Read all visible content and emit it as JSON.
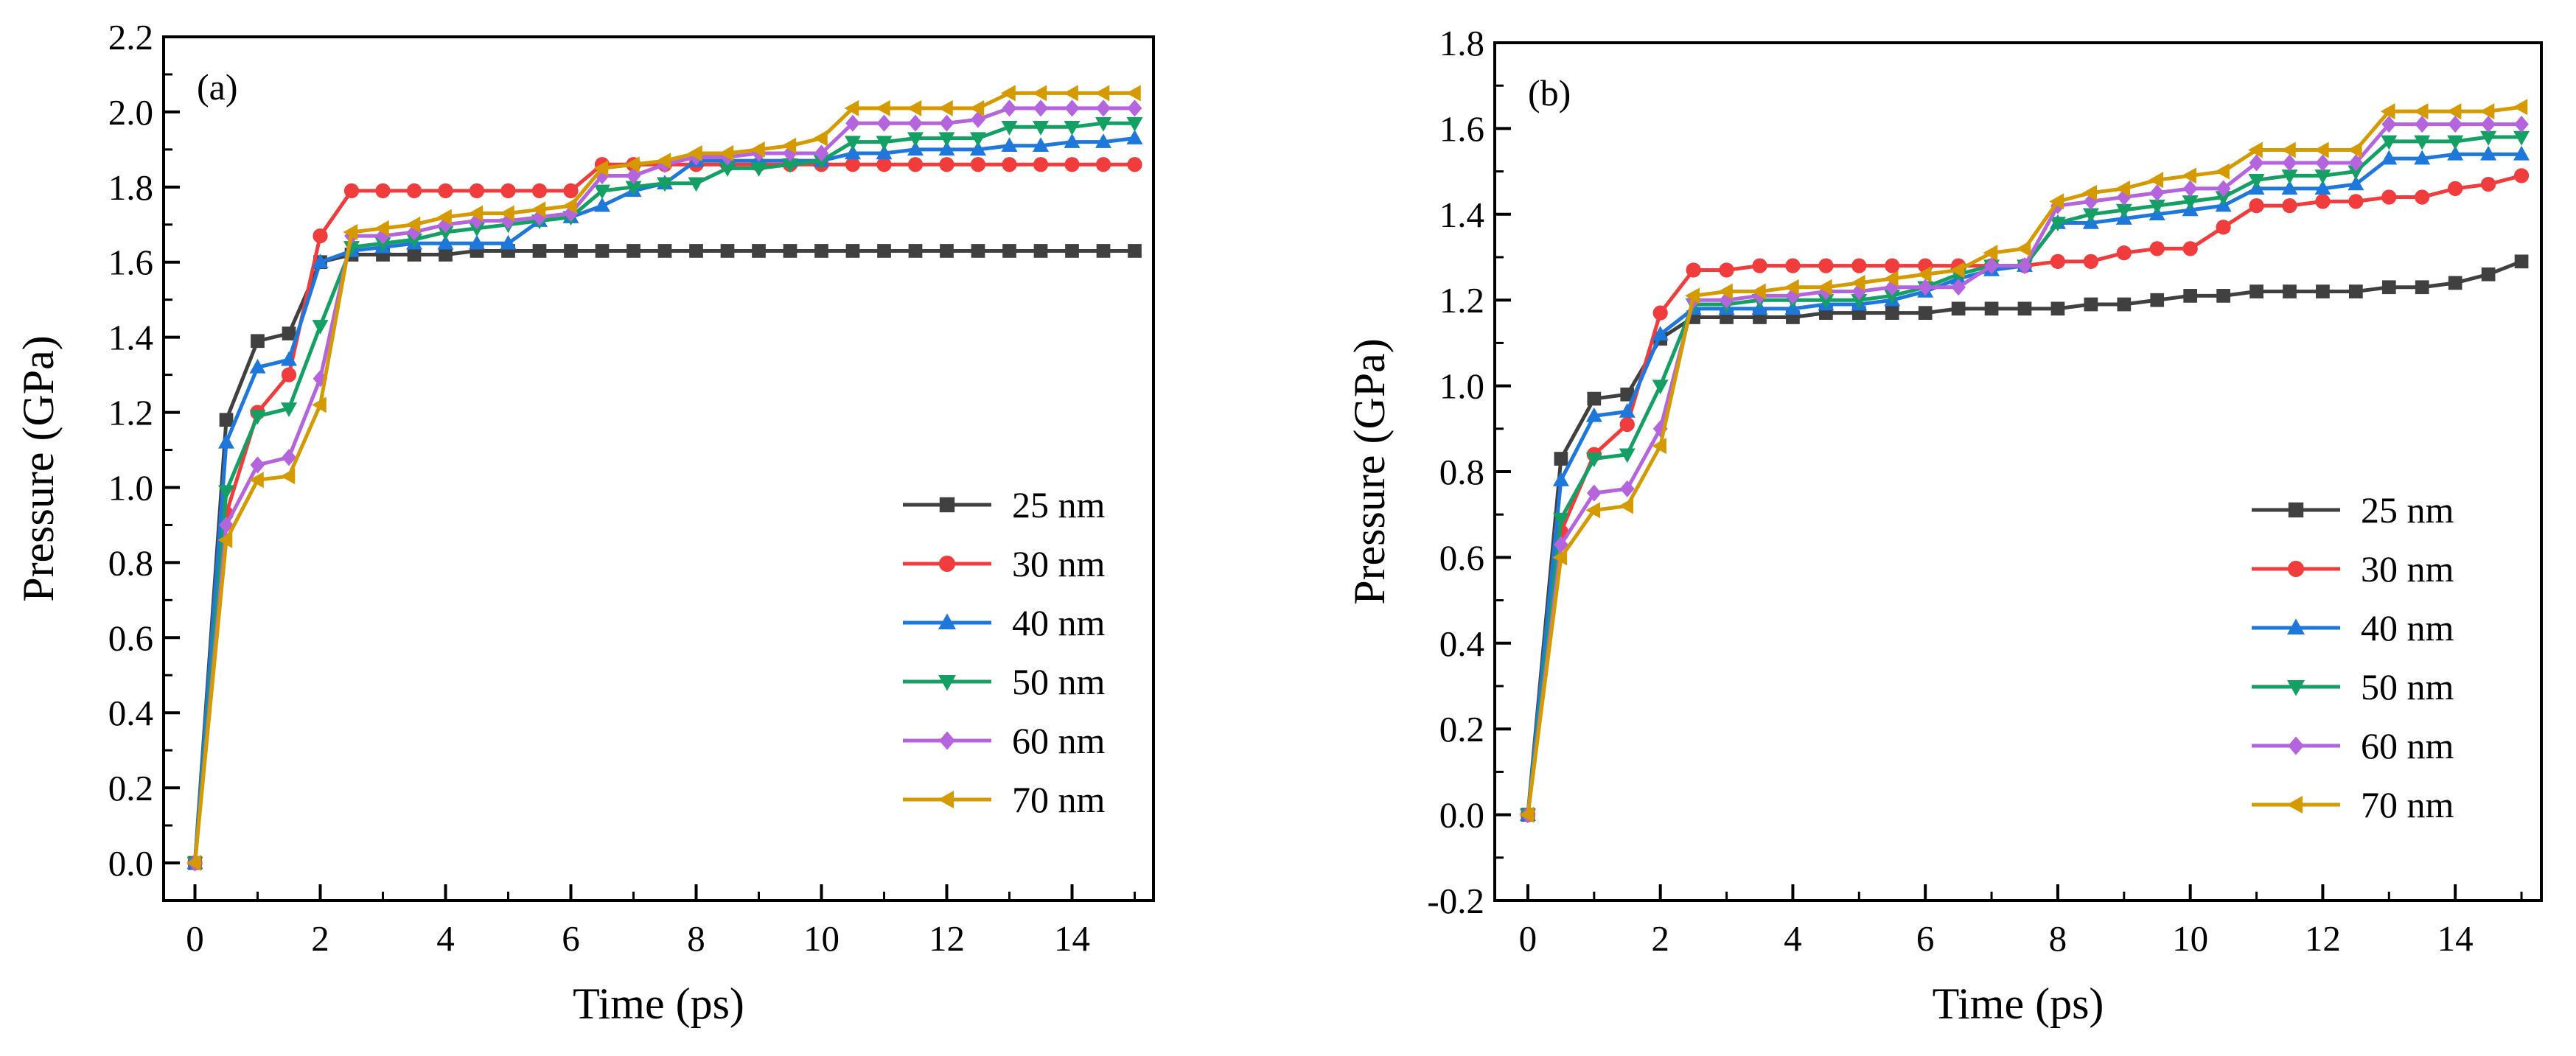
{
  "chart_data": [
    {
      "type": "line",
      "panel_label": "(a)",
      "xlabel": "Time (ps)",
      "ylabel": "Pressure (GPa)",
      "xlim": [
        -0.5,
        15.3
      ],
      "ylim": [
        -0.1,
        2.2
      ],
      "xticks": [
        0,
        2,
        4,
        6,
        8,
        10,
        12,
        14
      ],
      "xtick_labels": [
        "0",
        "2",
        "4",
        "6",
        "8",
        "10",
        "12",
        "14"
      ],
      "yticks": [
        0.0,
        0.2,
        0.4,
        0.6,
        0.8,
        1.0,
        1.2,
        1.4,
        1.6,
        1.8,
        2.0,
        2.2
      ],
      "ytick_labels": [
        "0.0",
        "0.2",
        "0.4",
        "0.6",
        "0.8",
        "1.0",
        "1.2",
        "1.4",
        "1.6",
        "1.8",
        "2.0",
        "2.2"
      ],
      "legend_position": "bottom-right",
      "x": [
        0,
        0.5,
        1,
        1.5,
        2,
        2.5,
        3,
        3.5,
        4,
        4.5,
        5,
        5.5,
        6,
        6.5,
        7,
        7.5,
        8,
        8.5,
        9,
        9.5,
        10,
        10.5,
        11,
        11.5,
        12,
        12.5,
        13,
        13.5,
        14,
        14.5,
        15
      ],
      "series": [
        {
          "name": "25 nm",
          "marker": "square",
          "color": "#404040",
          "values": [
            0,
            1.18,
            1.39,
            1.41,
            1.6,
            1.62,
            1.62,
            1.62,
            1.62,
            1.63,
            1.63,
            1.63,
            1.63,
            1.63,
            1.63,
            1.63,
            1.63,
            1.63,
            1.63,
            1.63,
            1.63,
            1.63,
            1.63,
            1.63,
            1.63,
            1.63,
            1.63,
            1.63,
            1.63,
            1.63,
            1.63
          ]
        },
        {
          "name": "30 nm",
          "marker": "circle",
          "color": "#f03c3c",
          "values": [
            0,
            0.93,
            1.2,
            1.3,
            1.67,
            1.79,
            1.79,
            1.79,
            1.79,
            1.79,
            1.79,
            1.79,
            1.79,
            1.86,
            1.86,
            1.86,
            1.86,
            1.86,
            1.86,
            1.86,
            1.86,
            1.86,
            1.86,
            1.86,
            1.86,
            1.86,
            1.86,
            1.86,
            1.86,
            1.86,
            1.86
          ]
        },
        {
          "name": "40 nm",
          "marker": "triangle-up",
          "color": "#1e78dc",
          "values": [
            0,
            1.12,
            1.32,
            1.34,
            1.6,
            1.63,
            1.64,
            1.65,
            1.65,
            1.65,
            1.65,
            1.71,
            1.72,
            1.75,
            1.79,
            1.81,
            1.87,
            1.87,
            1.87,
            1.87,
            1.87,
            1.89,
            1.89,
            1.9,
            1.9,
            1.9,
            1.91,
            1.91,
            1.92,
            1.92,
            1.93
          ]
        },
        {
          "name": "50 nm",
          "marker": "triangle-down",
          "color": "#14a064",
          "values": [
            0,
            0.99,
            1.19,
            1.21,
            1.43,
            1.64,
            1.65,
            1.66,
            1.68,
            1.69,
            1.7,
            1.71,
            1.72,
            1.79,
            1.8,
            1.81,
            1.81,
            1.85,
            1.85,
            1.86,
            1.87,
            1.92,
            1.92,
            1.93,
            1.93,
            1.93,
            1.96,
            1.96,
            1.96,
            1.97,
            1.97
          ]
        },
        {
          "name": "60 nm",
          "marker": "diamond",
          "color": "#b464dc",
          "values": [
            0,
            0.9,
            1.06,
            1.08,
            1.29,
            1.67,
            1.67,
            1.68,
            1.7,
            1.71,
            1.71,
            1.72,
            1.73,
            1.83,
            1.83,
            1.86,
            1.88,
            1.88,
            1.89,
            1.89,
            1.89,
            1.97,
            1.97,
            1.97,
            1.97,
            1.98,
            2.01,
            2.01,
            2.01,
            2.01,
            2.01
          ]
        },
        {
          "name": "70 nm",
          "marker": "triangle-left",
          "color": "#d49a00",
          "values": [
            0,
            0.86,
            1.02,
            1.03,
            1.22,
            1.68,
            1.69,
            1.7,
            1.72,
            1.73,
            1.73,
            1.74,
            1.75,
            1.85,
            1.86,
            1.87,
            1.89,
            1.89,
            1.9,
            1.91,
            1.93,
            2.01,
            2.01,
            2.01,
            2.01,
            2.01,
            2.05,
            2.05,
            2.05,
            2.05,
            2.05
          ]
        }
      ]
    },
    {
      "type": "line",
      "panel_label": "(b)",
      "xlabel": "Time (ps)",
      "ylabel": "Pressure (GPa)",
      "xlim": [
        -0.5,
        15.3
      ],
      "ylim": [
        -0.2,
        1.8
      ],
      "xticks": [
        0,
        2,
        4,
        6,
        8,
        10,
        12,
        14
      ],
      "xtick_labels": [
        "0",
        "2",
        "4",
        "6",
        "8",
        "10",
        "12",
        "14"
      ],
      "yticks": [
        -0.2,
        0.0,
        0.2,
        0.4,
        0.6,
        0.8,
        1.0,
        1.2,
        1.4,
        1.6,
        1.8
      ],
      "ytick_labels": [
        "-0.2",
        "0.0",
        "0.2",
        "0.4",
        "0.6",
        "0.8",
        "1.0",
        "1.2",
        "1.4",
        "1.6",
        "1.8"
      ],
      "legend_position": "bottom-right",
      "x": [
        0,
        0.5,
        1,
        1.5,
        2,
        2.5,
        3,
        3.5,
        4,
        4.5,
        5,
        5.5,
        6,
        6.5,
        7,
        7.5,
        8,
        8.5,
        9,
        9.5,
        10,
        10.5,
        11,
        11.5,
        12,
        12.5,
        13,
        13.5,
        14,
        14.5,
        15
      ],
      "series": [
        {
          "name": "25 nm",
          "marker": "square",
          "color": "#404040",
          "values": [
            0,
            0.83,
            0.97,
            0.98,
            1.11,
            1.16,
            1.16,
            1.16,
            1.16,
            1.17,
            1.17,
            1.17,
            1.17,
            1.18,
            1.18,
            1.18,
            1.18,
            1.19,
            1.19,
            1.2,
            1.21,
            1.21,
            1.22,
            1.22,
            1.22,
            1.22,
            1.23,
            1.23,
            1.24,
            1.26,
            1.29
          ]
        },
        {
          "name": "30 nm",
          "marker": "circle",
          "color": "#f03c3c",
          "values": [
            0,
            0.66,
            0.84,
            0.91,
            1.17,
            1.27,
            1.27,
            1.28,
            1.28,
            1.28,
            1.28,
            1.28,
            1.28,
            1.28,
            1.28,
            1.28,
            1.29,
            1.29,
            1.31,
            1.32,
            1.32,
            1.37,
            1.42,
            1.42,
            1.43,
            1.43,
            1.44,
            1.44,
            1.46,
            1.47,
            1.49
          ]
        },
        {
          "name": "40 nm",
          "marker": "triangle-up",
          "color": "#1e78dc",
          "values": [
            0,
            0.78,
            0.93,
            0.94,
            1.12,
            1.18,
            1.18,
            1.18,
            1.18,
            1.19,
            1.19,
            1.2,
            1.22,
            1.25,
            1.27,
            1.28,
            1.38,
            1.38,
            1.39,
            1.4,
            1.41,
            1.42,
            1.46,
            1.46,
            1.46,
            1.47,
            1.53,
            1.53,
            1.54,
            1.54,
            1.54
          ]
        },
        {
          "name": "50 nm",
          "marker": "triangle-down",
          "color": "#14a064",
          "values": [
            0,
            0.69,
            0.83,
            0.84,
            1.0,
            1.19,
            1.19,
            1.2,
            1.2,
            1.2,
            1.2,
            1.21,
            1.23,
            1.26,
            1.28,
            1.28,
            1.38,
            1.4,
            1.41,
            1.42,
            1.43,
            1.44,
            1.48,
            1.49,
            1.49,
            1.5,
            1.57,
            1.57,
            1.57,
            1.58,
            1.58
          ]
        },
        {
          "name": "60 nm",
          "marker": "diamond",
          "color": "#b464dc",
          "values": [
            0,
            0.63,
            0.75,
            0.76,
            0.9,
            1.2,
            1.2,
            1.21,
            1.21,
            1.22,
            1.22,
            1.23,
            1.23,
            1.23,
            1.28,
            1.28,
            1.42,
            1.43,
            1.44,
            1.45,
            1.46,
            1.46,
            1.52,
            1.52,
            1.52,
            1.52,
            1.61,
            1.61,
            1.61,
            1.61,
            1.61
          ]
        },
        {
          "name": "70 nm",
          "marker": "triangle-left",
          "color": "#d49a00",
          "values": [
            0,
            0.6,
            0.71,
            0.72,
            0.86,
            1.21,
            1.22,
            1.22,
            1.23,
            1.23,
            1.24,
            1.25,
            1.26,
            1.27,
            1.31,
            1.32,
            1.43,
            1.45,
            1.46,
            1.48,
            1.49,
            1.5,
            1.55,
            1.55,
            1.55,
            1.55,
            1.64,
            1.64,
            1.64,
            1.64,
            1.65
          ]
        }
      ]
    }
  ]
}
